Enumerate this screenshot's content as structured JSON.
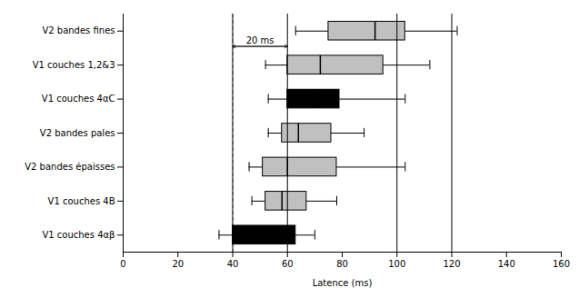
{
  "chart_data": {
    "type": "box",
    "orientation": "horizontal",
    "xlabel": "Latence (ms)",
    "categories": [
      "V1 couches 4αβ",
      "V1 couches 4B",
      "V2 bandes épaisses",
      "V2 bandes pales",
      "V1 couches 4αC",
      "V1 couches 1,2&3",
      "V2 bandes fines"
    ],
    "colors": [
      "#000000",
      "#c0c0c0",
      "#c0c0c0",
      "#c0c0c0",
      "#000000",
      "#c0c0c0",
      "#c0c0c0"
    ],
    "whislo": [
      35,
      47,
      46,
      53,
      53,
      52,
      63
    ],
    "q1": [
      40,
      52,
      51,
      58,
      60,
      60,
      75
    ],
    "med": [
      50,
      58,
      60,
      64,
      70,
      72,
      92
    ],
    "q3": [
      63,
      67,
      78,
      76,
      79,
      95,
      103
    ],
    "whishi": [
      70,
      78,
      103,
      88,
      103,
      112,
      122
    ],
    "vlines": [
      40,
      60,
      100,
      120
    ],
    "vline_dashed": 40,
    "arrow": {
      "from": 40,
      "to": 60
    },
    "annotation": "20 ms",
    "xlim": [
      0,
      160
    ],
    "xticks": [
      0,
      20,
      40,
      60,
      80,
      100,
      120,
      140,
      160
    ],
    "grid": false
  }
}
